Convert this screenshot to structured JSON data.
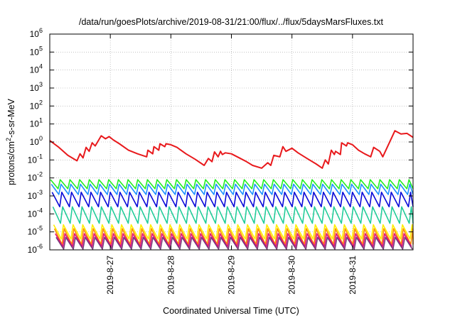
{
  "chart_data": {
    "type": "line",
    "title": "/data/run/goesPlots/archive/2019-08-31/21:00/flux/../flux/5daysMarsFluxes.txt",
    "xlabel": "Coordinated Universal Time (UTC)",
    "ylabel": {
      "base": "protons/cm",
      "sup": "2",
      "rest": "-s-sr-MeV"
    },
    "yscale": "log",
    "ylim": [
      1e-06,
      1000000.0
    ],
    "xlim": [
      0,
      6
    ],
    "yticks": [
      {
        "value": 1e-06,
        "base": "10",
        "exp": "-6"
      },
      {
        "value": 1e-05,
        "base": "10",
        "exp": "-5"
      },
      {
        "value": 0.0001,
        "base": "10",
        "exp": "-4"
      },
      {
        "value": 0.001,
        "base": "10",
        "exp": "-3"
      },
      {
        "value": 0.01,
        "base": "10",
        "exp": "-2"
      },
      {
        "value": 0.1,
        "base": "10",
        "exp": "-1"
      },
      {
        "value": 1.0,
        "base": "10",
        "exp": "0"
      },
      {
        "value": 10.0,
        "base": "10",
        "exp": "1"
      },
      {
        "value": 100.0,
        "base": "10",
        "exp": "2"
      },
      {
        "value": 1000.0,
        "base": "10",
        "exp": "3"
      },
      {
        "value": 10000.0,
        "base": "10",
        "exp": "4"
      },
      {
        "value": 100000.0,
        "base": "10",
        "exp": "5"
      },
      {
        "value": 1000000.0,
        "base": "10",
        "exp": "6"
      }
    ],
    "xticks": [
      {
        "value": 1,
        "label": "2019-8-27"
      },
      {
        "value": 2,
        "label": "2019-8-28"
      },
      {
        "value": 3,
        "label": "2019-8-29"
      },
      {
        "value": 4,
        "label": "2019-8-30"
      },
      {
        "value": 5,
        "label": "2019-8-31"
      }
    ],
    "grid": true,
    "series": [
      {
        "color": "#e8191c",
        "x": [
          0,
          0.15,
          0.3,
          0.45,
          0.5,
          0.55,
          0.6,
          0.65,
          0.7,
          0.75,
          0.85,
          0.92,
          0.98,
          1.05,
          1.15,
          1.3,
          1.45,
          1.6,
          1.62,
          1.7,
          1.72,
          1.8,
          1.82,
          1.9,
          1.92,
          2.0,
          2.1,
          2.25,
          2.4,
          2.55,
          2.62,
          2.68,
          2.72,
          2.78,
          2.82,
          2.85,
          2.9,
          3.0,
          3.15,
          3.25,
          3.35,
          3.5,
          3.6,
          3.65,
          3.7,
          3.8,
          3.85,
          3.9,
          4.0,
          4.1,
          4.25,
          4.4,
          4.5,
          4.55,
          4.6,
          4.65,
          4.7,
          4.72,
          4.8,
          4.82,
          4.9,
          4.92,
          5.0,
          5.1,
          5.2,
          5.3,
          5.35,
          5.45,
          5.5,
          5.7,
          5.8,
          5.9,
          6.0
        ],
        "y": [
          1.2,
          0.5,
          0.18,
          0.09,
          0.22,
          0.13,
          0.5,
          0.3,
          0.9,
          0.6,
          2.2,
          1.5,
          2.0,
          1.3,
          0.8,
          0.35,
          0.22,
          0.15,
          0.35,
          0.22,
          0.55,
          0.35,
          0.8,
          0.55,
          0.8,
          0.7,
          0.5,
          0.22,
          0.11,
          0.05,
          0.12,
          0.08,
          0.28,
          0.15,
          0.3,
          0.2,
          0.25,
          0.22,
          0.12,
          0.08,
          0.05,
          0.035,
          0.07,
          0.05,
          0.18,
          0.15,
          0.55,
          0.3,
          0.45,
          0.25,
          0.12,
          0.06,
          0.035,
          0.1,
          0.06,
          0.35,
          0.2,
          0.3,
          0.2,
          0.9,
          0.6,
          0.9,
          0.7,
          0.35,
          0.22,
          0.15,
          0.5,
          0.3,
          0.15,
          4.2,
          2.8,
          3.0,
          1.8
        ]
      },
      {
        "color": "#22ee22",
        "lo": 0.0025,
        "hi": 0.008
      },
      {
        "color": "#1e90ff",
        "lo": 0.0012,
        "hi": 0.0045
      },
      {
        "color": "#0a0ad8",
        "lo": 0.00025,
        "hi": 0.0016
      },
      {
        "color": "#22cc99",
        "lo": 3e-05,
        "hi": 0.00025
      },
      {
        "color": "#ffee00",
        "lo": 4e-06,
        "hi": 2.5e-05
      },
      {
        "color": "#ff8c00",
        "lo": 2e-06,
        "hi": 1.5e-05
      },
      {
        "color": "#e0107a",
        "lo": 1.5e-06,
        "hi": 8e-06
      },
      {
        "color": "#7a3a7a",
        "lo": 1.1e-06,
        "hi": 5e-06
      }
    ]
  }
}
